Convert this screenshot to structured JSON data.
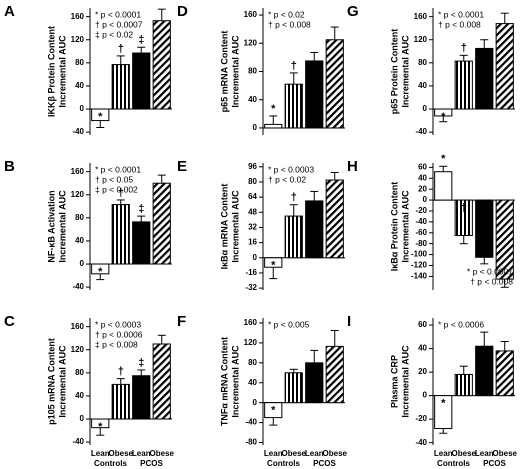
{
  "chart_data": [
    {
      "type": "bar",
      "panel": "A",
      "ylabel": [
        "IKKβ Protein Content",
        "Incremental AUC"
      ],
      "categories": [
        null,
        null,
        null,
        null
      ],
      "values": [
        -20,
        77,
        97,
        153
      ],
      "errors": [
        12,
        15,
        10,
        20
      ],
      "symbols": [
        "*",
        "†",
        "‡",
        null
      ],
      "fills": [
        "white",
        "vertical-stripes",
        "black",
        "diagonal-stripes"
      ],
      "ylim": [
        -45,
        175
      ],
      "yticks": [
        -40,
        0,
        40,
        80,
        120,
        160
      ],
      "annotations": [
        "* p < 0.0001",
        "† p < 0.0007",
        "‡ p < 0.02"
      ],
      "annotation_corner": "upper left"
    },
    {
      "type": "bar",
      "panel": "B",
      "ylabel": [
        "NF-κB Activation",
        "Incremental AUC"
      ],
      "categories": [
        null,
        null,
        null,
        null
      ],
      "values": [
        -17,
        103,
        73,
        140
      ],
      "errors": [
        10,
        8,
        10,
        14
      ],
      "symbols": [
        "*",
        "†",
        "‡",
        null
      ],
      "fills": [
        "white",
        "vertical-stripes",
        "black",
        "diagonal-stripes"
      ],
      "ylim": [
        -45,
        175
      ],
      "yticks": [
        -40,
        0,
        40,
        80,
        120,
        160
      ],
      "annotations": [
        "* p < 0.0001",
        "† p < 0.05",
        "‡ p < 0.002"
      ],
      "annotation_corner": "upper left"
    },
    {
      "type": "bar",
      "panel": "C",
      "ylabel": [
        "p105 mRNA Content",
        "Incremental AUC"
      ],
      "categories": [
        "Lean",
        "Obese",
        "Lean",
        "Obese"
      ],
      "groups": [
        "Controls",
        "PCOS"
      ],
      "values": [
        -15,
        60,
        75,
        130
      ],
      "errors": [
        13,
        10,
        10,
        15
      ],
      "symbols": [
        "*",
        "†",
        "‡",
        null
      ],
      "fills": [
        "white",
        "vertical-stripes",
        "black",
        "diagonal-stripes"
      ],
      "ylim": [
        -45,
        175
      ],
      "yticks": [
        -40,
        0,
        40,
        80,
        120,
        160
      ],
      "annotations": [
        "* p < 0.0003",
        "† p < 0.0006",
        "‡ p < 0.008"
      ],
      "annotation_corner": "upper left"
    },
    {
      "type": "bar",
      "panel": "D",
      "ylabel": [
        "p65 mRNA Content",
        "Incremental AUC"
      ],
      "categories": [
        null,
        null,
        null,
        null
      ],
      "values": [
        5,
        62,
        95,
        125
      ],
      "errors": [
        12,
        16,
        12,
        18
      ],
      "symbols": [
        "*",
        "†",
        null,
        null
      ],
      "fills": [
        "white",
        "vertical-stripes",
        "black",
        "diagonal-stripes"
      ],
      "ylim": [
        -10,
        170
      ],
      "yticks": [
        0,
        40,
        80,
        120,
        160
      ],
      "annotations": [
        "* p < 0.02",
        "† p < 0.008"
      ],
      "annotation_corner": "upper left"
    },
    {
      "type": "bar",
      "panel": "E",
      "ylabel": [
        "IκBα mRNA Content",
        "Incremental AUC"
      ],
      "categories": [
        null,
        null,
        null,
        null
      ],
      "values": [
        -10,
        44,
        60,
        82
      ],
      "errors": [
        12,
        12,
        10,
        8
      ],
      "symbols": [
        "*",
        "†",
        null,
        null
      ],
      "fills": [
        "white",
        "vertical-stripes",
        "black",
        "diagonal-stripes"
      ],
      "ylim": [
        -34,
        100
      ],
      "yticks": [
        -32,
        -16,
        0,
        16,
        32,
        48,
        64,
        80,
        96
      ],
      "annotations": [
        "* p < 0.0003",
        "† p < 0.02"
      ],
      "annotation_corner": "upper left"
    },
    {
      "type": "bar",
      "panel": "F",
      "ylabel": [
        "TNFα mRNA Content",
        "Incremental AUC"
      ],
      "categories": [
        "Lean",
        "Obese",
        "Lean",
        "Obese"
      ],
      "groups": [
        "Controls",
        "PCOS"
      ],
      "values": [
        -30,
        60,
        80,
        113
      ],
      "errors": [
        15,
        7,
        25,
        32
      ],
      "symbols": [
        "*",
        null,
        null,
        null
      ],
      "fills": [
        "white",
        "vertical-stripes",
        "black",
        "diagonal-stripes"
      ],
      "ylim": [
        -85,
        170
      ],
      "yticks": [
        -80,
        -40,
        0,
        40,
        80,
        120,
        160
      ],
      "annotations": [
        "* p < 0.005"
      ],
      "annotation_corner": "upper left"
    },
    {
      "type": "bar",
      "panel": "G",
      "ylabel": [
        "p65 Protein Content",
        "Incremental AUC"
      ],
      "categories": [
        null,
        null,
        null,
        null
      ],
      "values": [
        -12,
        83,
        105,
        148
      ],
      "errors": [
        10,
        10,
        15,
        18
      ],
      "symbols": [
        "*",
        "†",
        null,
        null
      ],
      "fills": [
        "white",
        "vertical-stripes",
        "black",
        "diagonal-stripes"
      ],
      "ylim": [
        -45,
        175
      ],
      "yticks": [
        -40,
        0,
        40,
        80,
        120,
        160
      ],
      "annotations": [
        "* p < 0.0001",
        "† p < 0.008"
      ],
      "annotation_corner": "upper left"
    },
    {
      "type": "bar",
      "panel": "H",
      "ylabel": [
        "IκBα Protein Content",
        "Incremental AUC"
      ],
      "categories": [
        null,
        null,
        null,
        null
      ],
      "values": [
        52,
        -65,
        -105,
        -145
      ],
      "errors": [
        10,
        15,
        12,
        15
      ],
      "symbols": [
        "*",
        "†",
        null,
        null
      ],
      "fills": [
        "white",
        "vertical-stripes",
        "black",
        "diagonal-stripes"
      ],
      "ylim": [
        -165,
        68
      ],
      "yticks": [
        -140,
        -120,
        -100,
        -80,
        -60,
        -40,
        -20,
        0,
        20,
        40,
        60
      ],
      "annotations": [
        "* p < 0.0001",
        "† p < 0.008"
      ],
      "annotation_corner": "lower right"
    },
    {
      "type": "bar",
      "panel": "I",
      "ylabel": [
        "Plasma CRP",
        "Incremental AUC"
      ],
      "categories": [
        "Lean",
        "Obese",
        "Lean",
        "Obese"
      ],
      "groups": [
        "Controls",
        "PCOS"
      ],
      "values": [
        -28,
        18,
        42,
        38
      ],
      "errors": [
        4,
        7,
        12,
        8
      ],
      "symbols": [
        "*",
        null,
        null,
        null
      ],
      "fills": [
        "white",
        "vertical-stripes",
        "black",
        "diagonal-stripes"
      ],
      "ylim": [
        -42,
        66
      ],
      "yticks": [
        -40,
        -20,
        0,
        20,
        40,
        60
      ],
      "annotations": [
        "* p < 0.0006"
      ],
      "annotation_corner": "upper left"
    }
  ]
}
